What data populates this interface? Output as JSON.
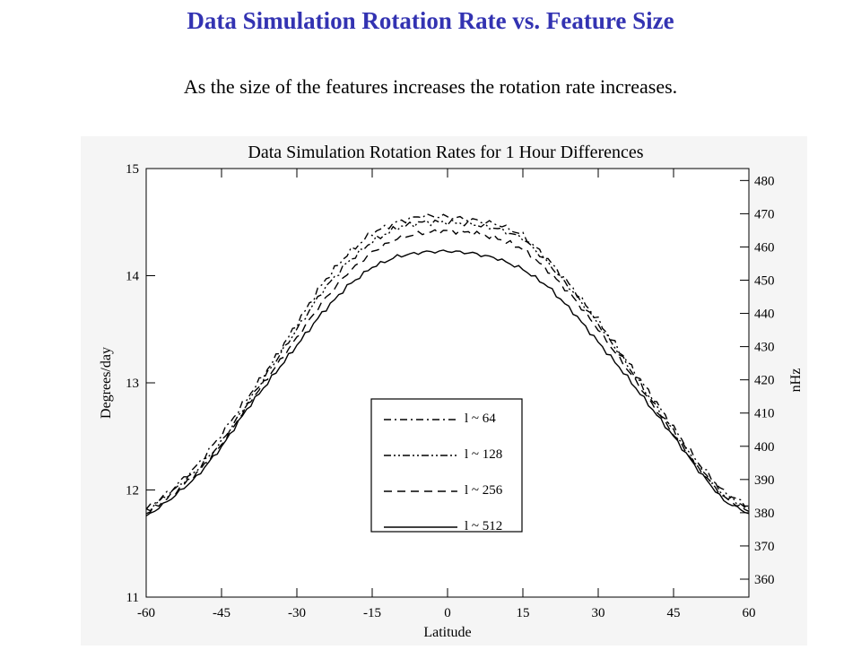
{
  "slide": {
    "title": "Data Simulation Rotation Rate vs. Feature Size",
    "subtitle": "As the size of the features increases the rotation rate increases."
  },
  "chart_data": {
    "type": "line",
    "title": "Data Simulation Rotation Rates for  1 Hour Differences",
    "xlabel": "Latitude",
    "ylabel": "Degrees/day",
    "y2label": "nHz",
    "xlim": [
      -60,
      60
    ],
    "ylim": [
      11,
      15
    ],
    "y2lim": [
      354.6,
      483.6
    ],
    "xticks": [
      -60,
      -45,
      -30,
      -15,
      0,
      15,
      30,
      45,
      60
    ],
    "yticks": [
      11,
      12,
      13,
      14,
      15
    ],
    "y2ticks": [
      360,
      370,
      380,
      390,
      400,
      410,
      420,
      430,
      440,
      450,
      460,
      470,
      480
    ],
    "grid": false,
    "legend_position": "center-bottom",
    "x": [
      -60,
      -55,
      -50,
      -45,
      -40,
      -35,
      -30,
      -25,
      -20,
      -15,
      -10,
      -5,
      0,
      5,
      10,
      15,
      20,
      25,
      30,
      35,
      40,
      45,
      50,
      55,
      60
    ],
    "series": [
      {
        "name": "l ~ 64",
        "dash": "dashdot",
        "values": [
          11.82,
          12.0,
          12.22,
          12.52,
          12.85,
          13.18,
          13.55,
          13.92,
          14.2,
          14.4,
          14.5,
          14.56,
          14.55,
          14.52,
          14.48,
          14.38,
          14.15,
          13.88,
          13.58,
          13.25,
          12.92,
          12.58,
          12.25,
          11.98,
          11.85
        ]
      },
      {
        "name": "l ~ 128",
        "dash": "dashdotdot",
        "values": [
          11.8,
          11.98,
          12.18,
          12.45,
          12.8,
          13.15,
          13.5,
          13.85,
          14.12,
          14.32,
          14.45,
          14.5,
          14.5,
          14.48,
          14.44,
          14.35,
          14.12,
          13.85,
          13.55,
          13.22,
          12.88,
          12.55,
          12.22,
          11.95,
          11.83
        ]
      },
      {
        "name": "l ~ 256",
        "dash": "dashed",
        "values": [
          11.78,
          11.95,
          12.15,
          12.42,
          12.78,
          13.1,
          13.42,
          13.75,
          14.02,
          14.22,
          14.35,
          14.4,
          14.42,
          14.4,
          14.35,
          14.25,
          14.05,
          13.8,
          13.5,
          13.18,
          12.85,
          12.52,
          12.2,
          11.93,
          11.8
        ]
      },
      {
        "name": "l ~ 512",
        "dash": "solid",
        "values": [
          11.75,
          11.92,
          12.12,
          12.4,
          12.75,
          13.05,
          13.35,
          13.65,
          13.9,
          14.08,
          14.18,
          14.22,
          14.23,
          14.21,
          14.16,
          14.06,
          13.9,
          13.66,
          13.38,
          13.1,
          12.8,
          12.5,
          12.18,
          11.9,
          11.78
        ]
      }
    ]
  }
}
